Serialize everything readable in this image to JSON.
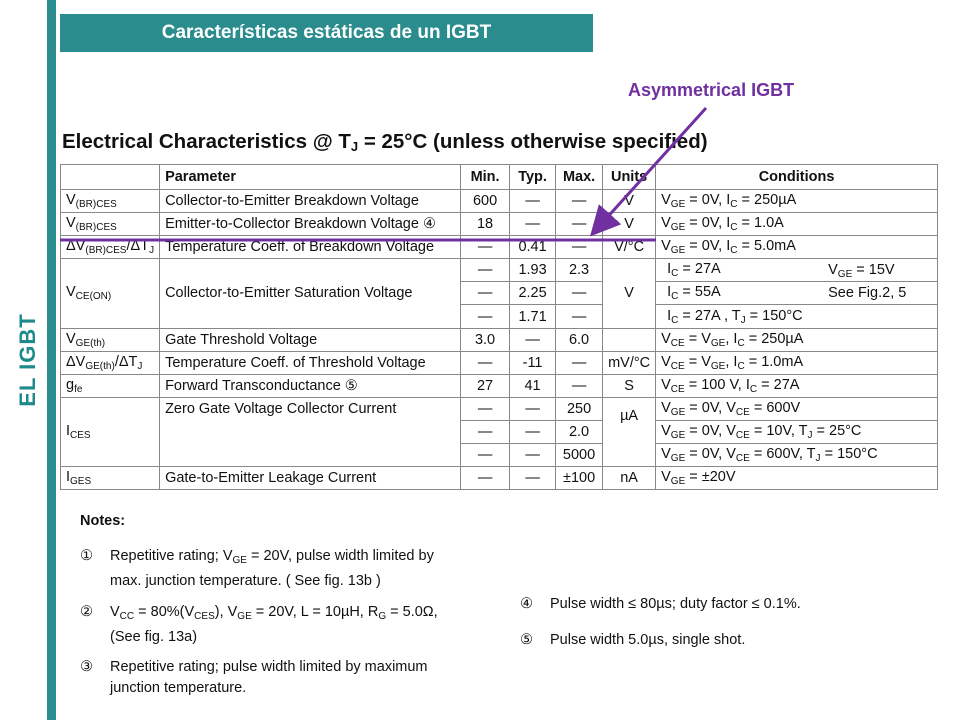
{
  "slide": {
    "title": "Características estáticas de un IGBT",
    "side_label": "EL IGBT",
    "annotation": "Asymmetrical IGBT"
  },
  "heading": {
    "prefix": "Electrical Characteristics @ T",
    "sub": "J",
    "suffix": " = 25°C (unless otherwise specified)"
  },
  "table": {
    "headers": {
      "parameter": "Parameter",
      "min": "Min.",
      "typ": "Typ.",
      "max": "Max.",
      "units": "Units",
      "conditions": "Conditions"
    },
    "rows": [
      {
        "sym": "V",
        "sym_sub": "(BR)CES",
        "sym_tail": "",
        "param": "Collector-to-Emitter Breakdown Voltage",
        "min": "600",
        "typ": "—",
        "max": "—",
        "units": "V",
        "cond": "V<sub>GE</sub> = 0V, I<sub>C</sub> = 250µA"
      },
      {
        "sym": "V",
        "sym_sub": "(BR)CES",
        "sym_tail": "",
        "param": "Emitter-to-Collector Breakdown Voltage ④",
        "min": "18",
        "typ": "—",
        "max": "—",
        "units": "V",
        "cond": "V<sub>GE</sub> = 0V, I<sub>C</sub> = 1.0A"
      },
      {
        "sym": "ΔV",
        "sym_sub": "(BR)CES",
        "sym_tail": "/ΔT<sub>J</sub>",
        "param": "Temperature Coeff. of Breakdown Voltage",
        "min": "—",
        "typ": "0.41",
        "max": "—",
        "units": "V/°C",
        "cond": "V<sub>GE</sub> = 0V, I<sub>C</sub> = 5.0mA"
      }
    ],
    "vce_on": {
      "sym": "V",
      "sym_sub": "CE(ON)",
      "param": "Collector-to-Emitter Saturation Voltage",
      "units": "V",
      "side_cond_1": "V<sub>GE</sub> = 15V",
      "side_cond_2": "See Fig.2, 5",
      "rows": [
        {
          "min": "—",
          "typ": "1.93",
          "max": "2.3",
          "cond": "I<sub>C</sub> = 27A"
        },
        {
          "min": "—",
          "typ": "2.25",
          "max": "—",
          "cond": "I<sub>C</sub> = 55A"
        },
        {
          "min": "—",
          "typ": "1.71",
          "max": "—",
          "cond": "I<sub>C</sub> = 27A , T<sub>J</sub> = 150°C"
        }
      ]
    },
    "rows2": [
      {
        "sym": "V",
        "sym_sub": "GE(th)",
        "sym_tail": "",
        "param": "Gate Threshold Voltage",
        "min": "3.0",
        "typ": "—",
        "max": "6.0",
        "units": "",
        "cond": "V<sub>CE</sub> = V<sub>GE</sub>, I<sub>C</sub> = 250µA"
      },
      {
        "sym": "ΔV",
        "sym_sub": "GE(th)",
        "sym_tail": "/ΔT<sub>J</sub>",
        "param": "Temperature Coeff. of Threshold Voltage",
        "min": "—",
        "typ": "-11",
        "max": "—",
        "units": "mV/°C",
        "cond": "V<sub>CE</sub> = V<sub>GE</sub>, I<sub>C</sub> = 1.0mA"
      },
      {
        "sym": "g",
        "sym_sub": "fe",
        "sym_tail": "",
        "param": "Forward Transconductance ⑤",
        "min": "27",
        "typ": "41",
        "max": "—",
        "units": "S",
        "cond": "V<sub>CE</sub> = 100 V, I<sub>C</sub> = 27A"
      }
    ],
    "ices": {
      "sym": "I",
      "sym_sub": "CES",
      "param": "Zero Gate Voltage Collector Current",
      "units": "µA",
      "rows": [
        {
          "min": "—",
          "typ": "—",
          "max": "250",
          "cond": "V<sub>GE</sub> = 0V, V<sub>CE</sub> = 600V"
        },
        {
          "min": "—",
          "typ": "—",
          "max": "2.0",
          "cond": "V<sub>GE</sub> = 0V, V<sub>CE</sub> = 10V, T<sub>J</sub> = 25°C"
        },
        {
          "min": "—",
          "typ": "—",
          "max": "5000",
          "cond": "V<sub>GE</sub> = 0V, V<sub>CE</sub> = 600V, T<sub>J</sub> = 150°C"
        }
      ]
    },
    "iges": {
      "sym": "I",
      "sym_sub": "GES",
      "param": "Gate-to-Emitter Leakage Current",
      "min": "—",
      "typ": "—",
      "max": "±100",
      "units": "nA",
      "cond": "V<sub>GE</sub> = ±20V"
    }
  },
  "notes": {
    "title": "Notes:",
    "items": [
      {
        "num": "①",
        "text": "Repetitive rating; V<sub>GE</sub> = 20V, pulse width limited by<br>max. junction temperature. ( See fig. 13b )"
      },
      {
        "num": "②",
        "text": "V<sub>CC</sub> = 80%(V<sub>CES</sub>), V<sub>GE</sub> = 20V, L = 10µH, R<sub>G</sub> = 5.0Ω,<br>(See fig. 13a)"
      },
      {
        "num": "③",
        "text": "Repetitive rating; pulse width limited by maximum<br>junction temperature."
      },
      {
        "num": "④",
        "text": "Pulse width ≤ 80µs; duty factor ≤ 0.1%."
      },
      {
        "num": "⑤",
        "text": "Pulse width 5.0µs, single shot."
      }
    ]
  },
  "colors": {
    "teal": "#2a8c8c",
    "purple": "#7030a0"
  }
}
